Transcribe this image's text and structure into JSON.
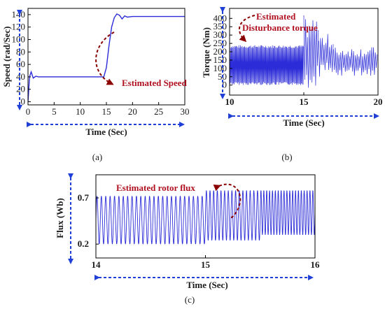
{
  "colors": {
    "signal": "#2c2cd8",
    "annotation": "#b01020",
    "axis_arrow": "#1f3fd6",
    "frame": "#000000"
  },
  "chart_data": [
    {
      "type": "line",
      "panel_label": "(a)",
      "xlabel": "Time (Sec)",
      "ylabel": "Speed (rad/Sec)",
      "xlim": [
        0,
        30
      ],
      "ylim": [
        -5,
        150
      ],
      "xticks": [
        0,
        5,
        10,
        15,
        20,
        25,
        30
      ],
      "yticks": [
        0,
        20,
        40,
        60,
        80,
        100,
        120,
        140
      ],
      "annotation": "Estimated Speed",
      "series": [
        {
          "x": [
            0,
            0.3,
            0.6,
            1.0,
            1.5,
            2.0,
            5,
            10,
            14.5,
            15.0,
            15.5,
            16.0,
            16.5,
            17.0,
            17.5,
            18.0,
            18.5,
            19,
            20,
            22,
            25,
            28,
            30
          ],
          "y": [
            0,
            40,
            48,
            38,
            41,
            40,
            40,
            40,
            40,
            55,
            90,
            120,
            135,
            141,
            139,
            133,
            138,
            136,
            137,
            137,
            137,
            137,
            137
          ]
        }
      ]
    },
    {
      "type": "line",
      "panel_label": "(b)",
      "xlabel": "Time (Sec)",
      "ylabel": "Torque (Nm)",
      "xlim": [
        10,
        20
      ],
      "ylim": [
        -60,
        460
      ],
      "xticks": [
        10,
        15,
        20
      ],
      "yticks": [
        0,
        50,
        100,
        150,
        200,
        250,
        300,
        350,
        400
      ],
      "annotation": "Estimated\nDisturbance torque",
      "series": [
        {
          "segments": [
            {
              "t": [
                10,
                15
              ],
              "center": 120,
              "amplitude": 120
            },
            {
              "t": [
                15,
                16
              ],
              "center": 200,
              "amplitude": 220
            },
            {
              "t": [
                16,
                17
              ],
              "center": 180,
              "amplitude": 130
            },
            {
              "t": [
                17,
                20
              ],
              "center": 140,
              "amplitude": 90
            }
          ]
        }
      ]
    },
    {
      "type": "line",
      "panel_label": "(c)",
      "xlabel": "Time (Sec)",
      "ylabel": "Flux (Wb)",
      "xlim": [
        14,
        16
      ],
      "ylim": [
        0.05,
        0.95
      ],
      "xticks": [
        14,
        15,
        16
      ],
      "yticks": [
        0.2,
        0.7
      ],
      "annotation": "Estimated rotor flux",
      "series": [
        {
          "segments": [
            {
              "t": [
                14.0,
                15.0
              ],
              "low": 0.2,
              "high": 0.72,
              "cycles": 25
            },
            {
              "t": [
                15.0,
                15.5
              ],
              "low": 0.24,
              "high": 0.78,
              "cycles": 15
            },
            {
              "t": [
                15.5,
                16.0
              ],
              "low": 0.3,
              "high": 0.78,
              "cycles": 19
            }
          ]
        }
      ]
    }
  ]
}
